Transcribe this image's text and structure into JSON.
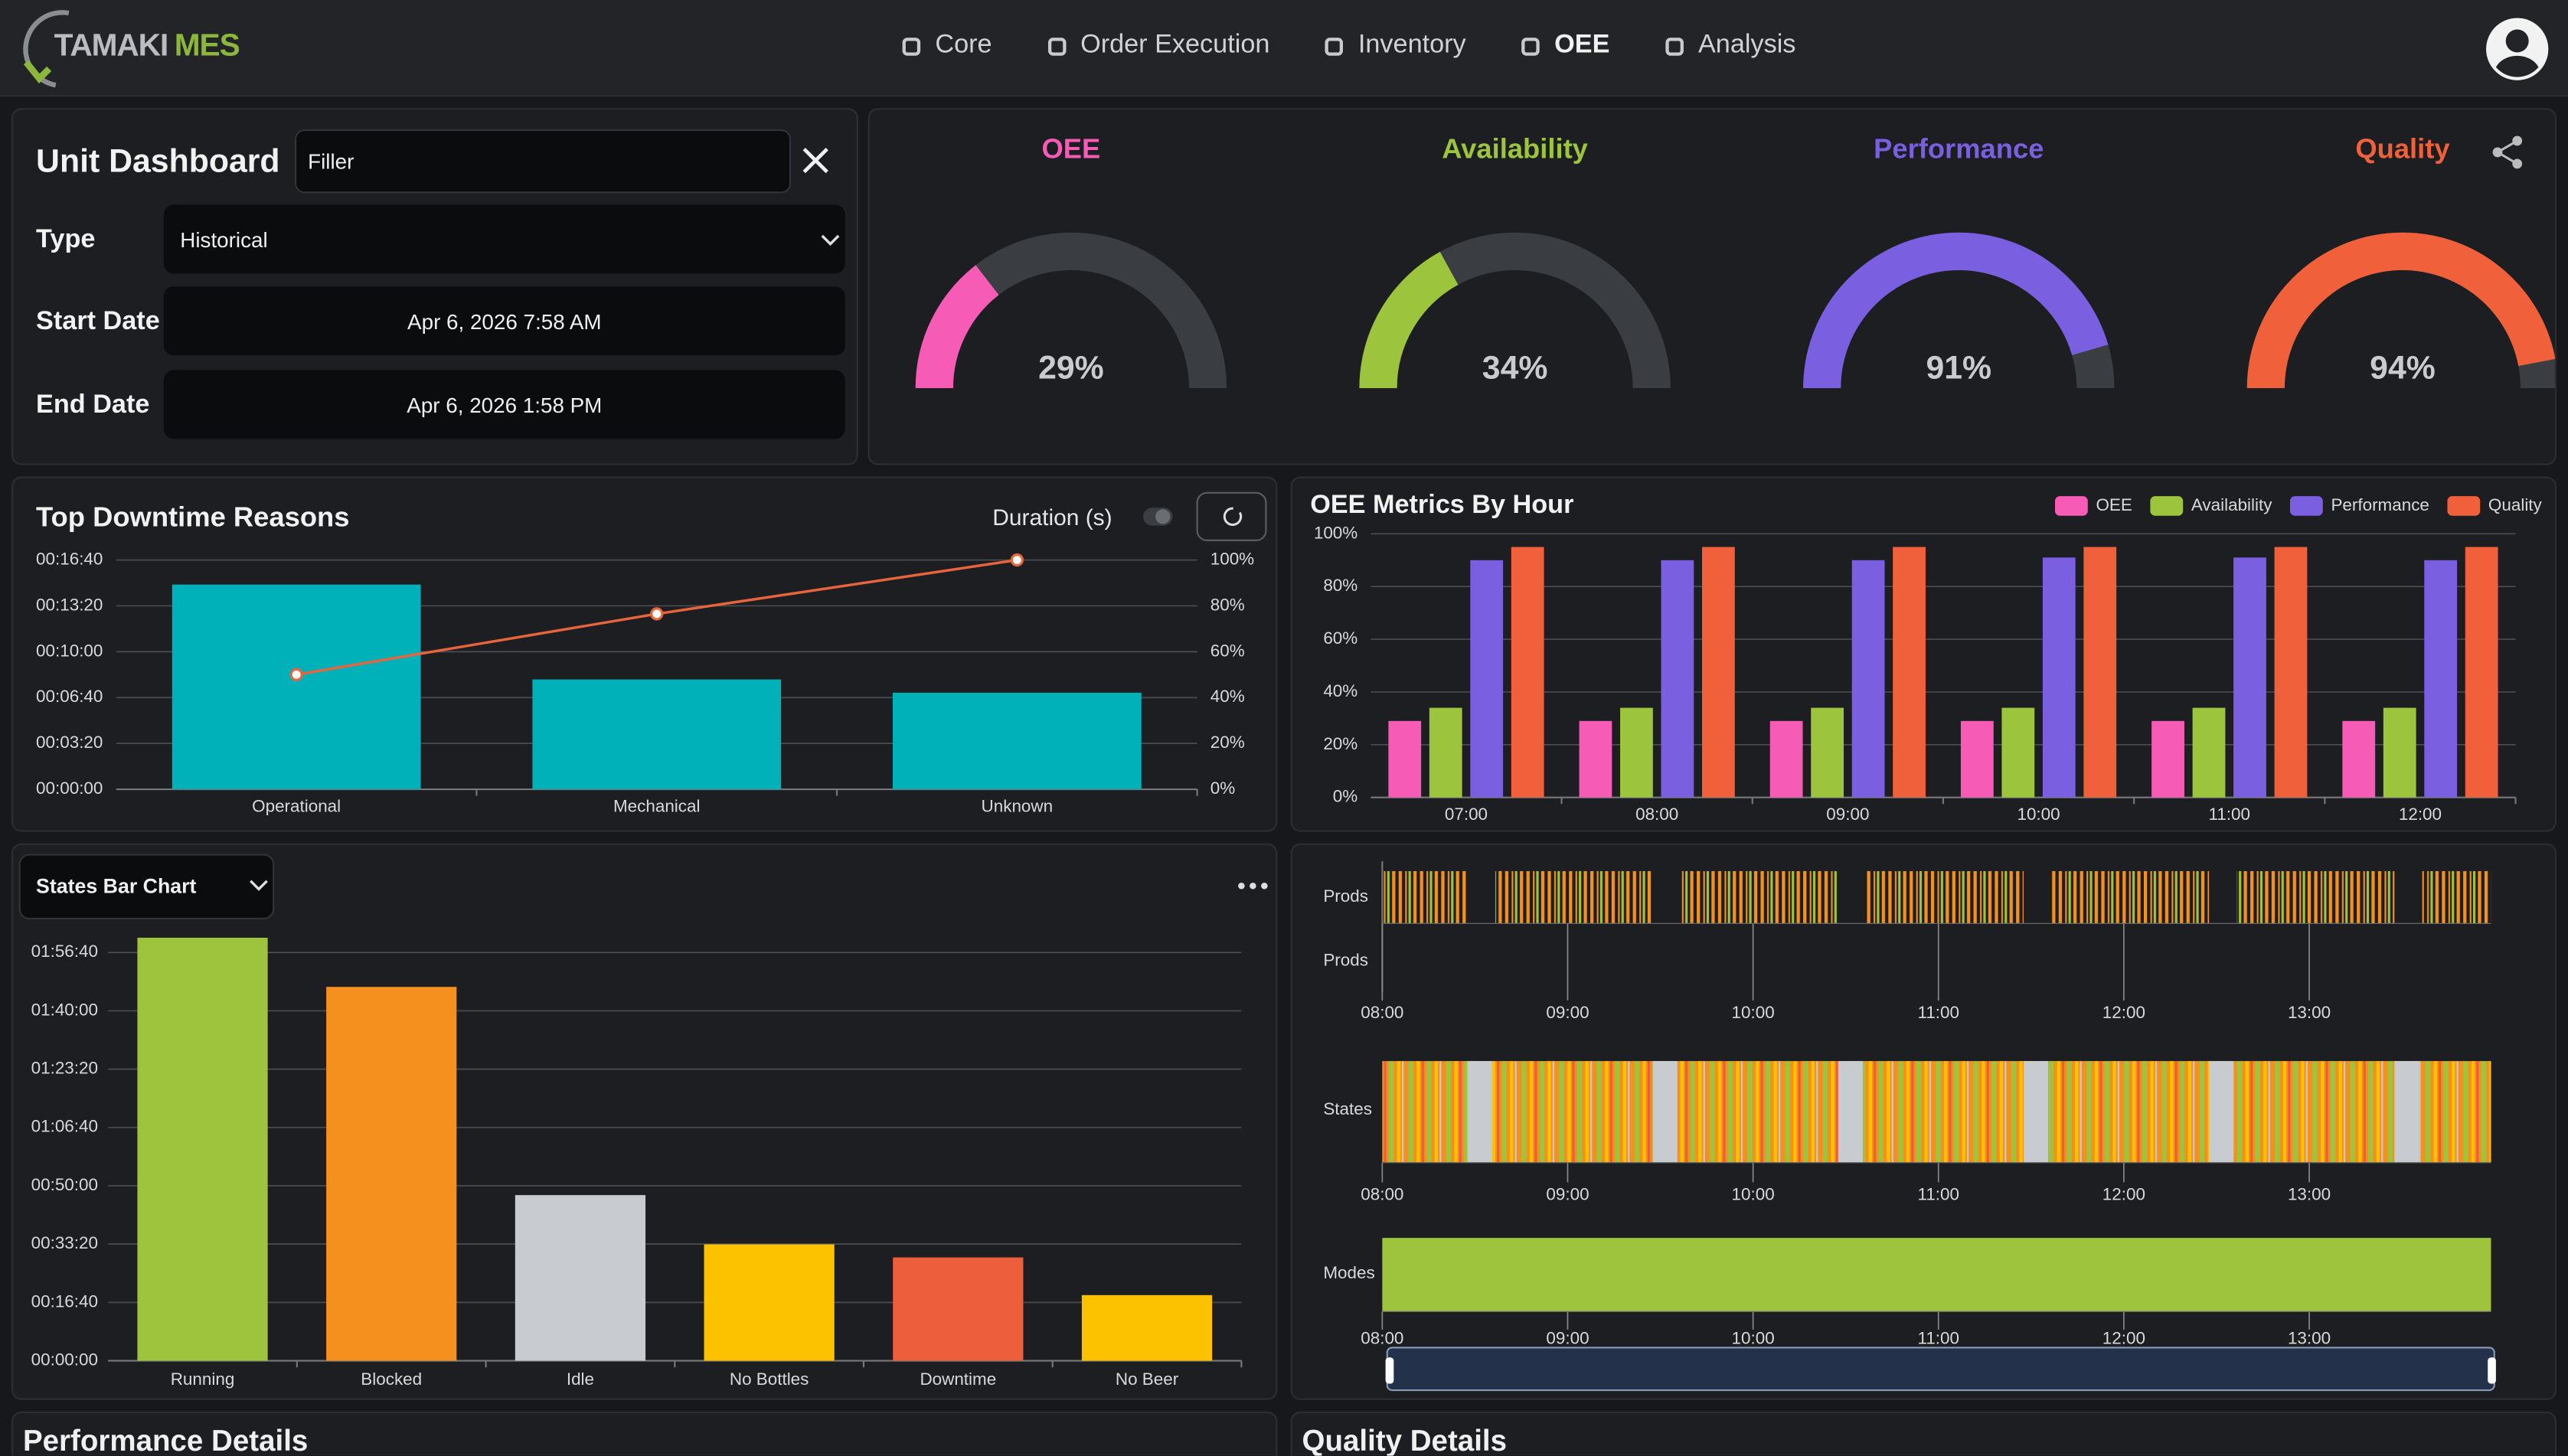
{
  "nav": {
    "brand": [
      "TAMAKI",
      "MES"
    ],
    "items": [
      "Core",
      "Order Execution",
      "Inventory",
      "OEE",
      "Analysis"
    ]
  },
  "unit_form": {
    "title": "Unit Dashboard",
    "unit": "Filler",
    "fields": [
      {
        "label": "Type",
        "value": "Historical"
      },
      {
        "label": "Start Date",
        "value": "Apr 6, 2026 7:58 AM"
      },
      {
        "label": "End Date",
        "value": "Apr 6, 2026 1:58 PM"
      }
    ]
  },
  "chart_data": [
    {
      "type": "gauge",
      "categories": [
        "OEE",
        "Availability",
        "Performance",
        "Quality"
      ],
      "values": [
        29,
        34,
        91,
        94
      ],
      "value_labels": [
        "29%",
        "34%",
        "91%",
        "94%"
      ],
      "colors": [
        "#f65bb5",
        "#9cc43c",
        "#7a5fe0",
        "#f0603a"
      ],
      "ylim": [
        0,
        100
      ]
    },
    {
      "type": "bar",
      "title": "Top Downtime Reasons",
      "toggle_label": "Duration (s)",
      "categories": [
        "Operational",
        "Mechanical",
        "Unknown"
      ],
      "series": [
        {
          "color": "#00b1ba",
          "values": [
            893,
            479,
            421
          ]
        },
        {
          "type": "line",
          "axis": "y2",
          "color": "#e8643c",
          "values": [
            50,
            76.5,
            100
          ]
        }
      ],
      "ylim": [
        0,
        1000
      ],
      "yticks": [
        {
          "value": 0,
          "label": "00:00:00"
        },
        {
          "value": 200,
          "label": "00:03:20"
        },
        {
          "value": 400,
          "label": "00:06:40"
        },
        {
          "value": 600,
          "label": "00:10:00"
        },
        {
          "value": 800,
          "label": "00:13:20"
        },
        {
          "value": 1000,
          "label": "00:16:40"
        }
      ],
      "y2lim": [
        0,
        100
      ],
      "y2ticks": [
        {
          "value": 0,
          "label": "0%"
        },
        {
          "value": 20,
          "label": "20%"
        },
        {
          "value": 40,
          "label": "40%"
        },
        {
          "value": 60,
          "label": "60%"
        },
        {
          "value": 80,
          "label": "80%"
        },
        {
          "value": 100,
          "label": "100%"
        }
      ],
      "grid": true
    },
    {
      "type": "bar",
      "title": "OEE Metrics By Hour",
      "categories": [
        "07:00",
        "08:00",
        "09:00",
        "10:00",
        "11:00",
        "12:00"
      ],
      "series": [
        {
          "name": "OEE",
          "color": "#f65bb5",
          "values": [
            29,
            29,
            29,
            29,
            29,
            29
          ]
        },
        {
          "name": "Availability",
          "color": "#9cc43c",
          "values": [
            34,
            34,
            34,
            34,
            34,
            34
          ]
        },
        {
          "name": "Performance",
          "color": "#7a5fe0",
          "values": [
            90,
            90,
            90,
            91,
            91,
            90
          ]
        },
        {
          "name": "Quality",
          "color": "#f0603a",
          "values": [
            95,
            95,
            95,
            95,
            95,
            95
          ]
        }
      ],
      "ylim": [
        0,
        100
      ],
      "yticks": [
        {
          "value": 0,
          "label": "0%"
        },
        {
          "value": 20,
          "label": "20%"
        },
        {
          "value": 40,
          "label": "40%"
        },
        {
          "value": 60,
          "label": "60%"
        },
        {
          "value": 80,
          "label": "80%"
        },
        {
          "value": 100,
          "label": "100%"
        }
      ],
      "grid": true,
      "legend": "top-right"
    },
    {
      "type": "bar",
      "title": "States Bar Chart",
      "categories": [
        "Running",
        "Blocked",
        "Idle",
        "No Bottles",
        "Downtime",
        "No Beer"
      ],
      "values": [
        7253,
        6410,
        2840,
        1996,
        1771,
        1125
      ],
      "colors": [
        "#9dc43c",
        "#f5901f",
        "#c8cbd0",
        "#fcc200",
        "#ed5e3d",
        "#fcc200"
      ],
      "ylim": [
        0,
        7300
      ],
      "yticks": [
        {
          "value": 0,
          "label": "00:00:00"
        },
        {
          "value": 1000,
          "label": "00:16:40"
        },
        {
          "value": 2000,
          "label": "00:33:20"
        },
        {
          "value": 3000,
          "label": "00:50:00"
        },
        {
          "value": 4000,
          "label": "01:06:40"
        },
        {
          "value": 5000,
          "label": "01:23:20"
        },
        {
          "value": 6000,
          "label": "01:40:00"
        },
        {
          "value": 7000,
          "label": "01:56:40"
        }
      ],
      "grid": true
    }
  ],
  "timeline": {
    "rows": [
      "Prods",
      "Prods",
      "States",
      "Modes"
    ],
    "time_labels": [
      "08:00",
      "09:00",
      "10:00",
      "11:00",
      "12:00",
      "13:00"
    ]
  },
  "sections": [
    "Performance Details",
    "Quality Details"
  ]
}
